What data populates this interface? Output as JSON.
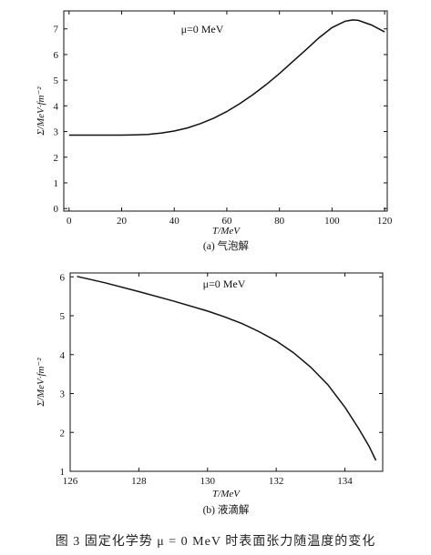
{
  "chart_data": [
    {
      "type": "line",
      "subcaption": "(a) 气泡解",
      "annotation": "μ=0 MeV",
      "xlabel": "T/MeV",
      "ylabel": "Σ/MeV·fm⁻²",
      "xlim": [
        -2,
        121
      ],
      "ylim": [
        -0.1,
        7.7
      ],
      "xticks": [
        0,
        20,
        40,
        60,
        80,
        100,
        120
      ],
      "yticks": [
        0,
        1,
        2,
        3,
        4,
        5,
        6,
        7
      ],
      "series": [
        {
          "x": [
            0,
            10,
            20,
            25,
            30,
            35,
            40,
            45,
            50,
            55,
            60,
            65,
            70,
            75,
            80,
            85,
            90,
            95,
            100,
            105,
            108,
            110,
            115,
            120
          ],
          "y": [
            2.86,
            2.86,
            2.86,
            2.87,
            2.89,
            2.94,
            3.02,
            3.14,
            3.31,
            3.52,
            3.78,
            4.09,
            4.44,
            4.83,
            5.26,
            5.72,
            6.18,
            6.65,
            7.05,
            7.3,
            7.35,
            7.33,
            7.15,
            6.88
          ]
        }
      ]
    },
    {
      "type": "line",
      "subcaption": "(b) 液滴解",
      "annotation": "μ=0 MeV",
      "xlabel": "T/MeV",
      "ylabel": "Σ/MeV·fm⁻²",
      "xlim": [
        126,
        135.1
      ],
      "ylim": [
        1,
        6.1
      ],
      "xticks": [
        126,
        128,
        130,
        132,
        134
      ],
      "yticks": [
        1,
        2,
        3,
        4,
        5,
        6
      ],
      "series": [
        {
          "x": [
            126.2,
            127,
            128,
            129,
            130,
            130.5,
            131,
            131.5,
            132,
            132.5,
            133,
            133.5,
            134,
            134.4,
            134.7,
            134.9
          ],
          "y": [
            6.01,
            5.85,
            5.62,
            5.38,
            5.12,
            4.97,
            4.8,
            4.59,
            4.35,
            4.05,
            3.68,
            3.23,
            2.65,
            2.1,
            1.65,
            1.28
          ]
        }
      ]
    }
  ],
  "caption": "图 3  固定化学势 μ = 0 MeV 时表面张力随温度的变化"
}
